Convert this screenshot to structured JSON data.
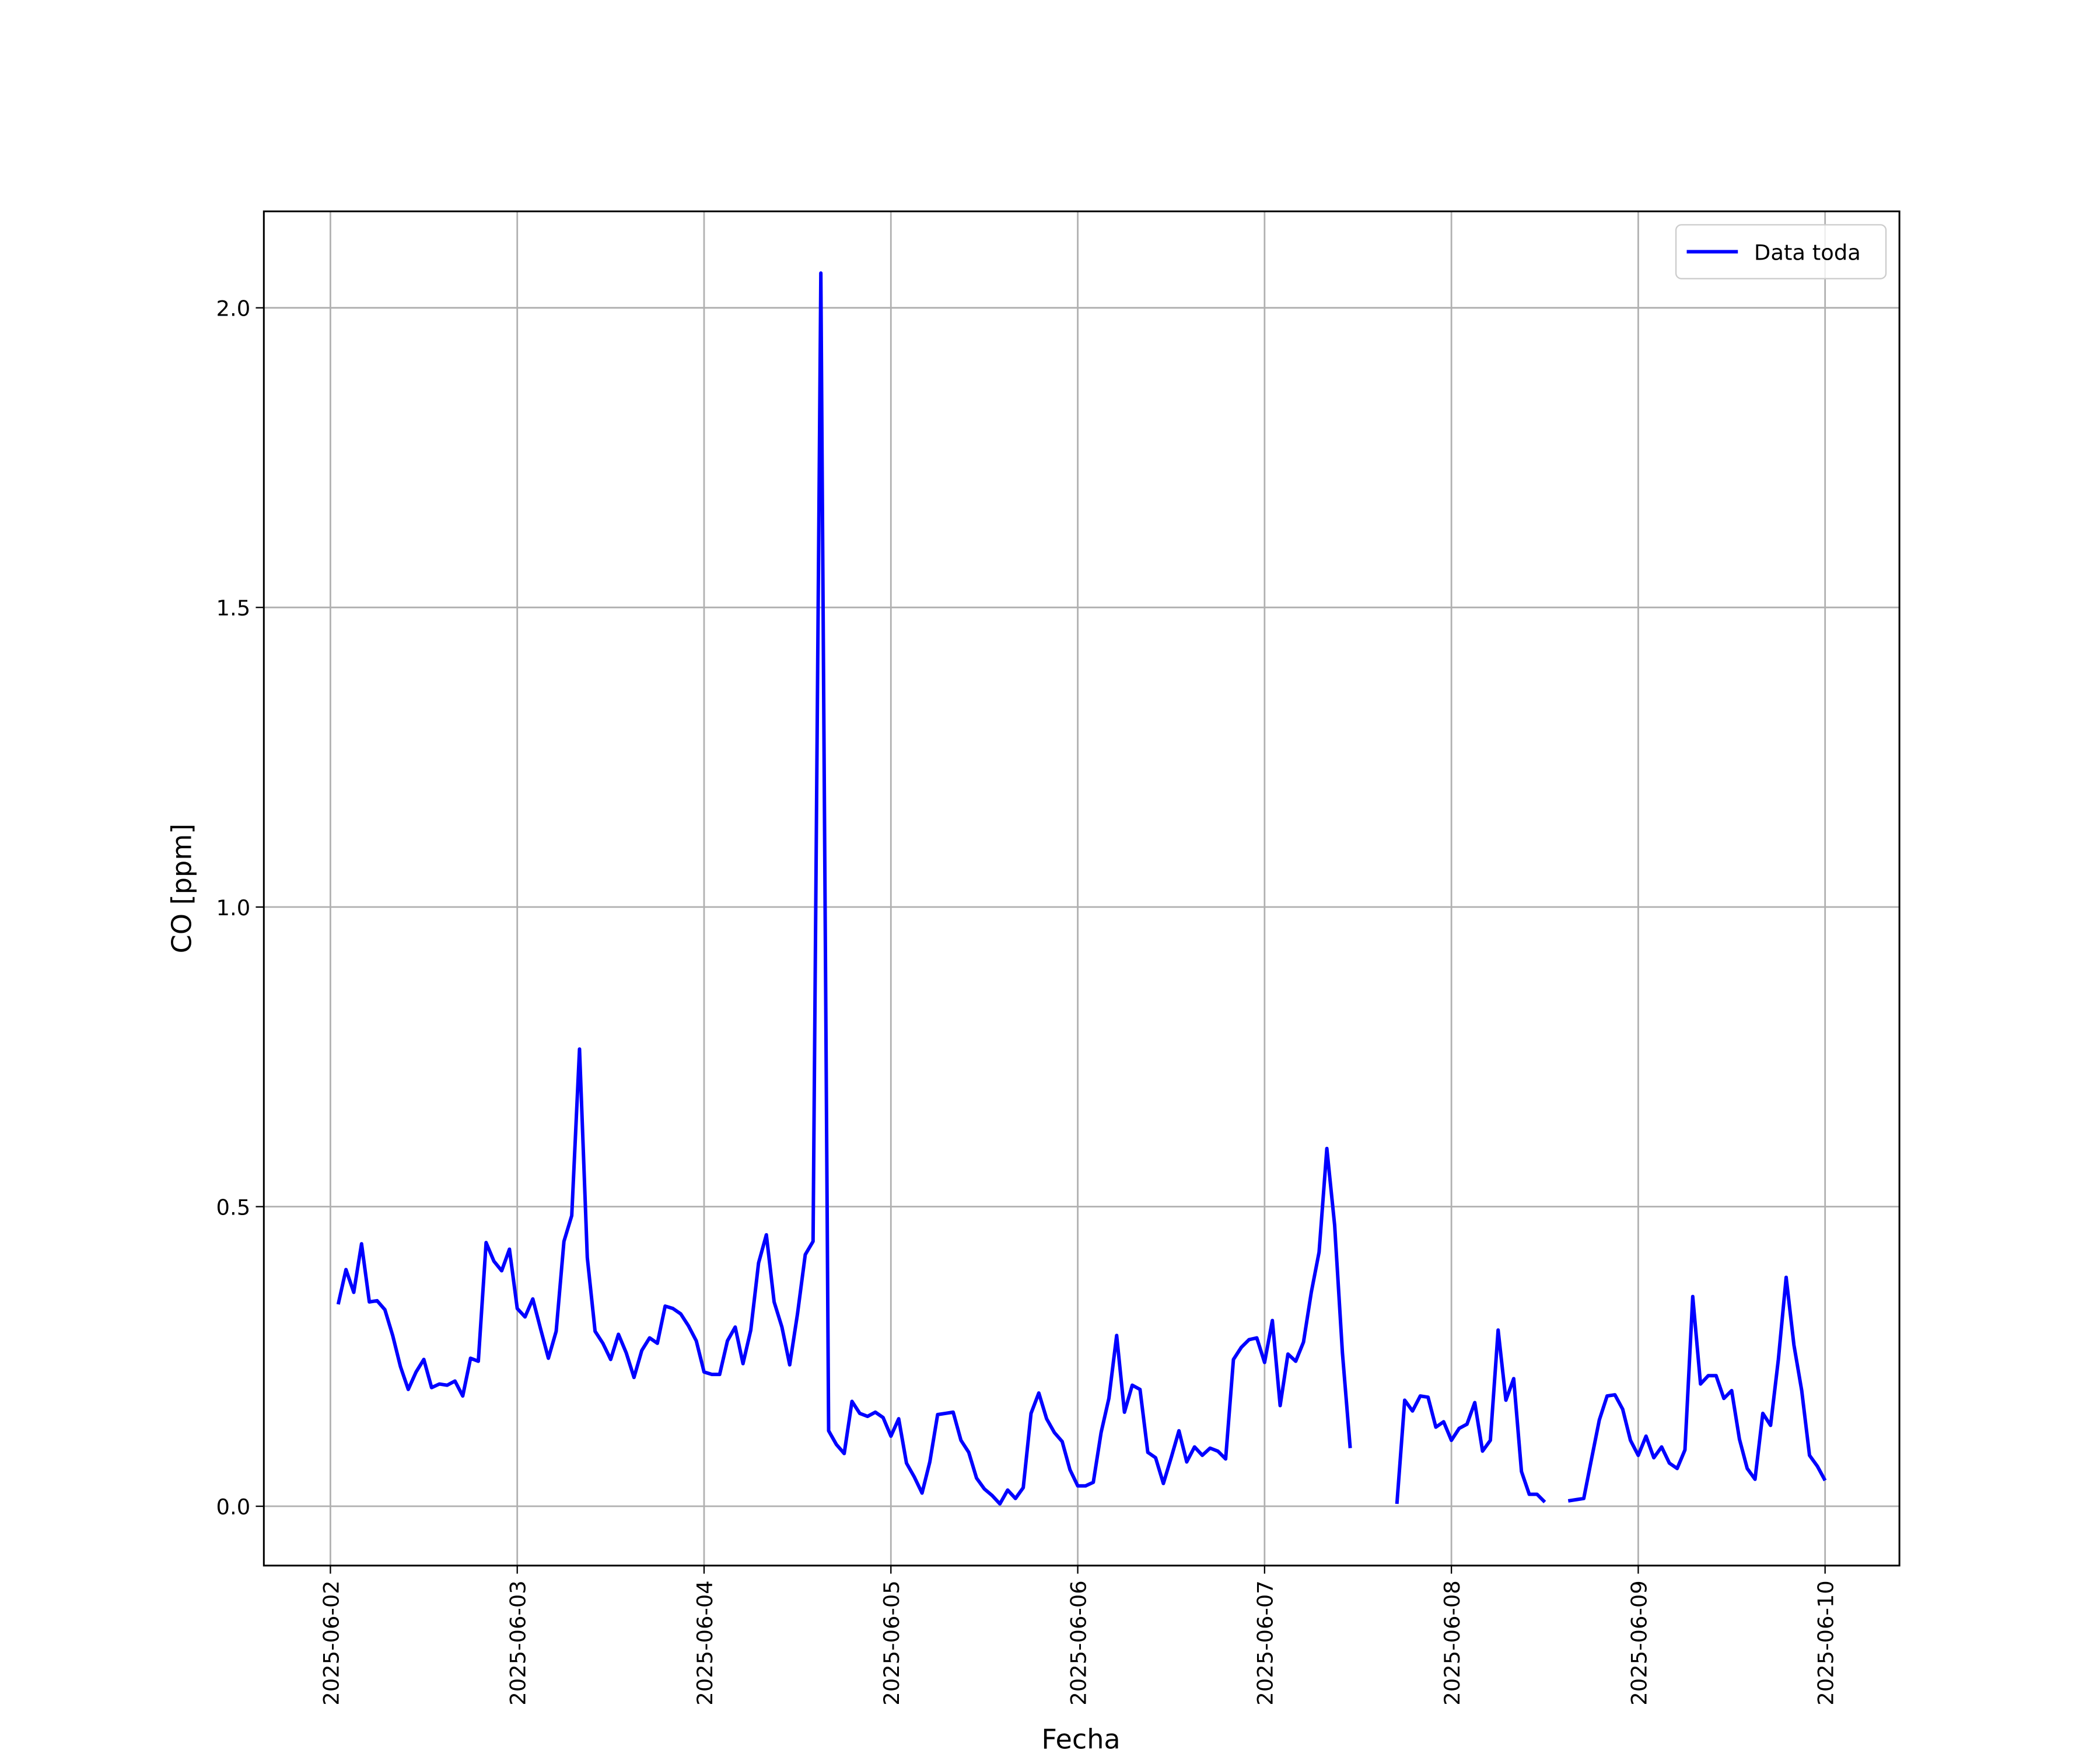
{
  "chart_data": {
    "type": "line",
    "x_label": "Fecha",
    "y_label": "CO [ppm]",
    "grid": true,
    "legend": "upper right",
    "xlim": [
      "2025-06-01 15:27",
      "2025-06-10 09:33"
    ],
    "ylim": [
      -0.099,
      2.161
    ],
    "xticks": [
      "2025-06-02",
      "2025-06-03",
      "2025-06-04",
      "2025-06-05",
      "2025-06-06",
      "2025-06-07",
      "2025-06-08",
      "2025-06-09",
      "2025-06-10"
    ],
    "yticks": [
      {
        "value": 0,
        "label": "0.0"
      },
      0.5,
      {
        "value": 1,
        "label": "1.0"
      },
      1.5,
      {
        "value": 2,
        "label": "2.0"
      }
    ],
    "x": [
      "2025-06-02 01:00",
      "2025-06-02 02:00",
      "2025-06-02 03:00",
      "2025-06-02 04:00",
      "2025-06-02 05:00",
      "2025-06-02 06:00",
      "2025-06-02 07:00",
      "2025-06-02 08:00",
      "2025-06-02 09:00",
      "2025-06-02 10:00",
      "2025-06-02 11:00",
      "2025-06-02 12:00",
      "2025-06-02 13:00",
      "2025-06-02 14:00",
      "2025-06-02 15:00",
      "2025-06-02 16:00",
      "2025-06-02 17:00",
      "2025-06-02 18:00",
      "2025-06-02 19:00",
      "2025-06-02 20:00",
      "2025-06-02 21:00",
      "2025-06-02 22:00",
      "2025-06-02 23:00",
      "2025-06-03 00:00",
      "2025-06-03 01:00",
      "2025-06-03 02:00",
      "2025-06-03 03:00",
      "2025-06-03 04:00",
      "2025-06-03 05:00",
      "2025-06-03 06:00",
      "2025-06-03 07:00",
      "2025-06-03 08:00",
      "2025-06-03 09:00",
      "2025-06-03 10:00",
      "2025-06-03 11:00",
      "2025-06-03 12:00",
      "2025-06-03 13:00",
      "2025-06-03 14:00",
      "2025-06-03 15:00",
      "2025-06-03 16:00",
      "2025-06-03 17:00",
      "2025-06-03 18:00",
      "2025-06-03 19:00",
      "2025-06-03 20:00",
      "2025-06-03 21:00",
      "2025-06-03 22:00",
      "2025-06-03 23:00",
      "2025-06-04 00:00",
      "2025-06-04 01:00",
      "2025-06-04 02:00",
      "2025-06-04 03:00",
      "2025-06-04 04:00",
      "2025-06-04 05:00",
      "2025-06-04 06:00",
      "2025-06-04 07:00",
      "2025-06-04 08:00",
      "2025-06-04 09:00",
      "2025-06-04 10:00",
      "2025-06-04 11:00",
      "2025-06-04 12:00",
      "2025-06-04 13:00",
      "2025-06-04 14:00",
      "2025-06-04 15:00",
      "2025-06-04 16:00",
      "2025-06-04 17:00",
      "2025-06-04 18:00",
      "2025-06-04 19:00",
      "2025-06-04 20:00",
      "2025-06-04 21:00",
      "2025-06-04 22:00",
      "2025-06-04 23:00",
      "2025-06-05 00:00",
      "2025-06-05 01:00",
      "2025-06-05 02:00",
      "2025-06-05 03:00",
      "2025-06-05 04:00",
      "2025-06-05 05:00",
      "2025-06-05 06:00",
      "2025-06-05 07:00",
      "2025-06-05 08:00",
      "2025-06-05 09:00",
      "2025-06-05 10:00",
      "2025-06-05 11:00",
      "2025-06-05 12:00",
      "2025-06-05 13:00",
      "2025-06-05 14:00",
      "2025-06-05 15:00",
      "2025-06-05 16:00",
      "2025-06-05 17:00",
      "2025-06-05 18:00",
      "2025-06-05 19:00",
      "2025-06-05 20:00",
      "2025-06-05 21:00",
      "2025-06-05 22:00",
      "2025-06-05 23:00",
      "2025-06-06 00:00",
      "2025-06-06 01:00",
      "2025-06-06 02:00",
      "2025-06-06 03:00",
      "2025-06-06 04:00",
      "2025-06-06 05:00",
      "2025-06-06 06:00",
      "2025-06-06 07:00",
      "2025-06-06 08:00",
      "2025-06-06 09:00",
      "2025-06-06 10:00",
      "2025-06-06 11:00",
      "2025-06-06 12:00",
      "2025-06-06 13:00",
      "2025-06-06 14:00",
      "2025-06-06 15:00",
      "2025-06-06 16:00",
      "2025-06-06 17:00",
      "2025-06-06 18:00",
      "2025-06-06 19:00",
      "2025-06-06 20:00",
      "2025-06-06 21:00",
      "2025-06-06 22:00",
      "2025-06-06 23:00",
      "2025-06-07 00:00",
      "2025-06-07 01:00",
      "2025-06-07 02:00",
      "2025-06-07 03:00",
      "2025-06-07 04:00",
      "2025-06-07 05:00",
      "2025-06-07 06:00",
      "2025-06-07 07:00",
      "2025-06-07 08:00",
      "2025-06-07 09:00",
      "2025-06-07 10:00",
      "2025-06-07 11:00",
      "2025-06-07 12:00",
      "2025-06-07 13:00",
      "2025-06-07 14:00",
      "2025-06-07 15:00",
      "2025-06-07 16:00",
      "2025-06-07 17:00",
      "2025-06-07 18:00",
      "2025-06-07 19:00",
      "2025-06-07 20:00",
      "2025-06-07 21:00",
      "2025-06-07 22:00",
      "2025-06-07 23:00",
      "2025-06-08 00:00",
      "2025-06-08 01:00",
      "2025-06-08 02:00",
      "2025-06-08 03:00",
      "2025-06-08 04:00",
      "2025-06-08 05:00",
      "2025-06-08 06:00",
      "2025-06-08 07:00",
      "2025-06-08 08:00",
      "2025-06-08 09:00",
      "2025-06-08 10:00",
      "2025-06-08 11:00",
      "2025-06-08 12:00",
      "2025-06-08 13:00",
      "2025-06-08 14:00",
      "2025-06-08 15:00",
      "2025-06-08 16:00",
      "2025-06-08 17:00",
      "2025-06-08 18:00",
      "2025-06-08 19:00",
      "2025-06-08 20:00",
      "2025-06-08 21:00",
      "2025-06-08 22:00",
      "2025-06-08 23:00",
      "2025-06-09 00:00",
      "2025-06-09 01:00",
      "2025-06-09 02:00",
      "2025-06-09 03:00",
      "2025-06-09 04:00",
      "2025-06-09 05:00",
      "2025-06-09 06:00",
      "2025-06-09 07:00",
      "2025-06-09 08:00",
      "2025-06-09 09:00",
      "2025-06-09 10:00",
      "2025-06-09 11:00",
      "2025-06-09 12:00",
      "2025-06-09 13:00",
      "2025-06-09 14:00",
      "2025-06-09 15:00",
      "2025-06-09 16:00",
      "2025-06-09 17:00",
      "2025-06-09 18:00",
      "2025-06-09 19:00",
      "2025-06-09 20:00",
      "2025-06-09 21:00",
      "2025-06-09 22:00",
      "2025-06-09 23:00",
      "2025-06-10 00:00"
    ],
    "series": [
      {
        "name": "Data toda",
        "color": "#0000ff",
        "values": [
          0.337,
          0.395,
          0.357,
          0.438,
          0.341,
          0.343,
          0.328,
          0.285,
          0.233,
          0.195,
          0.224,
          0.245,
          0.198,
          0.204,
          0.202,
          0.209,
          0.184,
          0.247,
          0.242,
          0.44,
          0.409,
          0.393,
          0.429,
          0.33,
          0.316,
          0.346,
          0.296,
          0.247,
          0.292,
          0.442,
          0.485,
          0.763,
          0.415,
          0.292,
          0.272,
          0.245,
          0.287,
          0.256,
          0.215,
          0.26,
          0.281,
          0.272,
          0.334,
          0.33,
          0.321,
          0.301,
          0.276,
          0.224,
          0.22,
          0.22,
          0.276,
          0.299,
          0.238,
          0.294,
          0.406,
          0.453,
          0.341,
          0.299,
          0.236,
          0.321,
          0.42,
          0.442,
          2.058,
          0.126,
          0.103,
          0.088,
          0.175,
          0.155,
          0.15,
          0.157,
          0.148,
          0.117,
          0.146,
          0.072,
          0.049,
          0.022,
          0.074,
          0.153,
          0.155,
          0.157,
          0.11,
          0.09,
          0.047,
          0.029,
          0.018,
          0.004,
          0.027,
          0.013,
          0.031,
          0.155,
          0.189,
          0.146,
          0.123,
          0.108,
          0.061,
          0.034,
          0.034,
          0.04,
          0.123,
          0.18,
          0.285,
          0.157,
          0.202,
          0.195,
          0.09,
          0.081,
          0.038,
          0.081,
          0.126,
          0.074,
          0.099,
          0.085,
          0.097,
          0.092,
          0.079,
          0.245,
          0.265,
          0.278,
          0.281,
          0.24,
          0.31,
          0.168,
          0.254,
          0.242,
          0.274,
          0.357,
          0.424,
          0.597,
          0.469,
          0.256,
          0.097,
          null,
          null,
          null,
          null,
          null,
          0.004,
          0.177,
          0.159,
          0.184,
          0.182,
          0.132,
          0.141,
          0.11,
          0.13,
          0.137,
          0.173,
          0.092,
          0.11,
          0.294,
          0.177,
          0.213,
          0.058,
          0.02,
          0.02,
          0.007,
          null,
          null,
          0.009,
          0.011,
          0.013,
          0.079,
          0.144,
          0.184,
          0.186,
          0.162,
          0.11,
          0.085,
          0.117,
          0.081,
          0.099,
          0.072,
          0.063,
          0.094,
          0.35,
          0.204,
          0.218,
          0.218,
          0.18,
          0.193,
          0.112,
          0.063,
          0.045,
          0.155,
          0.135,
          0.245,
          0.382,
          0.269,
          0.193,
          0.085,
          0.067,
          0.043
        ]
      }
    ]
  }
}
